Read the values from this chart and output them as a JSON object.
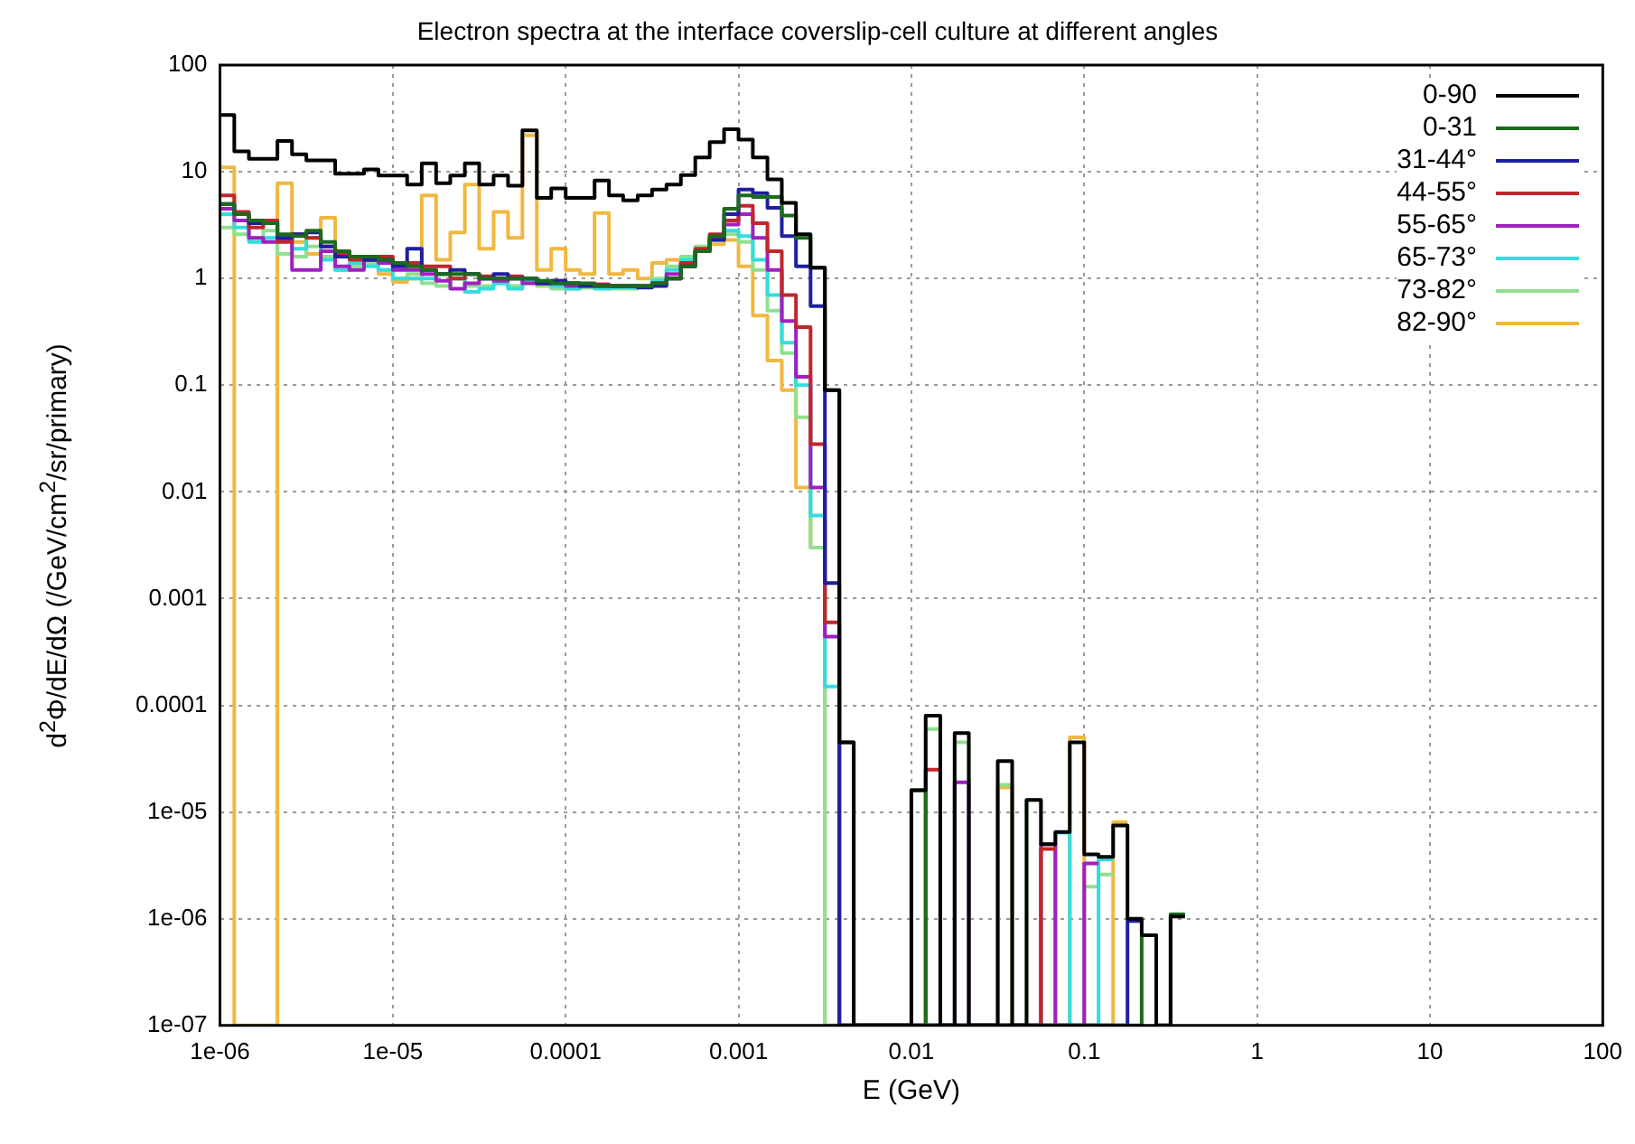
{
  "chart_data": {
    "type": "histogram",
    "title": "Electron spectra at the interface coverslip-cell culture at different angles",
    "xlabel": "E (GeV)",
    "ylabel": "d$^{2}$Φ/dE/dΩ (/GeV/cm$^{2}$/sr/primary)",
    "bins": [
      1e-06,
      1.21e-06,
      1.47e-06,
      1.78e-06,
      2.15e-06,
      2.61e-06,
      3.16e-06,
      3.83e-06,
      4.64e-06,
      5.62e-06,
      6.81e-06,
      8.25e-06,
      1e-05,
      1.21e-05,
      1.47e-05,
      1.78e-05,
      2.15e-05,
      2.61e-05,
      3.16e-05,
      3.83e-05,
      4.64e-05,
      5.62e-05,
      6.81e-05,
      8.25e-05,
      0.0001,
      0.000121,
      0.000147,
      0.000178,
      0.000215,
      0.000261,
      0.000316,
      0.000383,
      0.000464,
      0.000562,
      0.000681,
      0.000825,
      0.001,
      0.00121,
      0.00147,
      0.00178,
      0.00215,
      0.00261,
      0.00316,
      0.00383,
      0.00464,
      0.00562,
      0.00681,
      0.00825,
      0.01,
      0.0121,
      0.0147,
      0.0178,
      0.0215,
      0.0261,
      0.0316,
      0.0383,
      0.0464,
      0.0562,
      0.0681,
      0.0825,
      0.1,
      0.121,
      0.147,
      0.178,
      0.215,
      0.261,
      0.316,
      0.383
    ],
    "series": [
      {
        "name": "0-90",
        "color": "#000000",
        "values": [
          34,
          15.5,
          13.2,
          13.2,
          19.4,
          14.6,
          12.8,
          12.8,
          9.6,
          9.6,
          10.5,
          9.2,
          9.2,
          7.6,
          12,
          7.8,
          9.2,
          12,
          7.6,
          9.2,
          7.4,
          24.5,
          5.7,
          7,
          5.7,
          5.7,
          8.3,
          6,
          5.4,
          6,
          6.8,
          7.6,
          9.3,
          13.6,
          19,
          25,
          20,
          13.6,
          8.5,
          5.1,
          2.6,
          1.26,
          0.09,
          4.5e-05,
          null,
          null,
          null,
          null,
          1.6e-05,
          8e-05,
          null,
          5.5e-05,
          null,
          null,
          3e-05,
          null,
          1.3e-05,
          5e-06,
          6.5e-06,
          4.5e-05,
          4e-06,
          3.8e-06,
          7.5e-06,
          1e-06,
          7e-07,
          null,
          1.05e-06
        ]
      },
      {
        "name": "0-31",
        "color": "#1a6b1a",
        "values": [
          5,
          4,
          3.5,
          3.3,
          2.6,
          2.5,
          2.8,
          2.2,
          1.8,
          1.6,
          1.6,
          1.5,
          1.4,
          1.3,
          1.2,
          1.1,
          1.1,
          1.1,
          1.0,
          1.0,
          1.0,
          1.0,
          0.95,
          0.9,
          0.9,
          0.9,
          0.85,
          0.85,
          0.85,
          0.85,
          0.9,
          1.0,
          1.3,
          1.8,
          2.5,
          4.5,
          6,
          5.8,
          5.8,
          3.9,
          2.4,
          1.26,
          0.09,
          4.5e-05,
          null,
          null,
          null,
          null,
          1.6e-05,
          null,
          null,
          null,
          null,
          null,
          null,
          null,
          null,
          null,
          null,
          null,
          null,
          null,
          null,
          null,
          7e-07,
          null,
          1.1e-06
        ]
      },
      {
        "name": "31-44°",
        "color": "#1f1fa0",
        "bins": [
          1e-06,
          1.21e-06,
          1.47e-06,
          1.78e-06,
          2.15e-06,
          2.61e-06,
          3.16e-06,
          3.83e-06,
          4.64e-06,
          5.62e-06,
          6.81e-06,
          8.25e-06,
          1e-05,
          1.21e-05,
          1.47e-05,
          1.78e-05,
          2.15e-05,
          2.61e-05,
          3.16e-05,
          3.83e-05,
          4.64e-05,
          5.62e-05,
          6.81e-05,
          8.25e-05,
          0.0001,
          0.000121,
          0.000147,
          0.000178,
          0.000215,
          0.000261,
          0.000316,
          0.000383,
          0.000464,
          0.000562,
          0.000681,
          0.000825,
          0.001,
          0.00121,
          0.00147,
          0.00178,
          0.00215,
          0.00261,
          0.00316,
          0.00383,
          0.00464,
          0.00562,
          0.00681,
          0.00825,
          0.01,
          0.0121,
          0.0147,
          0.0178,
          0.0215,
          0.0261,
          0.0316,
          0.0383,
          0.0464,
          0.0562,
          0.0681,
          0.0825,
          0.1,
          0.121,
          0.147,
          0.178,
          0.215
        ],
        "values": [
          5,
          4,
          3.3,
          3.3,
          2.4,
          2.6,
          2.7,
          2,
          1.6,
          1.6,
          1.5,
          1.5,
          1.3,
          1.9,
          1.2,
          1.1,
          1.2,
          1.1,
          1.0,
          1.1,
          1.0,
          1.0,
          0.9,
          0.95,
          0.9,
          0.85,
          0.85,
          0.85,
          0.85,
          0.82,
          0.85,
          1.0,
          1.3,
          1.8,
          2.3,
          4.0,
          6.8,
          6.3,
          4.6,
          2.5,
          1.3,
          0.55,
          0.0014,
          null,
          null,
          null,
          null,
          null,
          null,
          null,
          null,
          null,
          null,
          null,
          null,
          null,
          null,
          null,
          null,
          null,
          null,
          null,
          null,
          9.5e-07
        ]
      },
      {
        "name": "44-55°",
        "color": "#c0262c",
        "bins": [
          1e-06,
          1.21e-06,
          1.47e-06,
          1.78e-06,
          2.15e-06,
          2.61e-06,
          3.16e-06,
          3.83e-06,
          4.64e-06,
          5.62e-06,
          6.81e-06,
          8.25e-06,
          1e-05,
          1.21e-05,
          1.47e-05,
          1.78e-05,
          2.15e-05,
          2.61e-05,
          3.16e-05,
          3.83e-05,
          4.64e-05,
          5.62e-05,
          6.81e-05,
          8.25e-05,
          0.0001,
          0.000121,
          0.000147,
          0.000178,
          0.000215,
          0.000261,
          0.000316,
          0.000383,
          0.000464,
          0.000562,
          0.000681,
          0.000825,
          0.001,
          0.00121,
          0.00147,
          0.00178,
          0.00215,
          0.00261,
          0.00316,
          0.00383,
          0.00464,
          0.00562,
          0.00681,
          0.00825,
          0.01,
          0.0121,
          0.0147,
          0.0178,
          0.0215,
          0.0261,
          0.0316,
          0.0383,
          0.0464,
          0.0562,
          0.0681
        ],
        "values": [
          6,
          4.2,
          3,
          3.5,
          2.2,
          2.6,
          2.4,
          2,
          1.7,
          1.5,
          1.5,
          1.6,
          1.4,
          1.4,
          1.3,
          1.3,
          1.0,
          1.1,
          1.05,
          1.0,
          1.05,
          1.0,
          0.9,
          0.95,
          0.9,
          0.88,
          0.88,
          0.85,
          0.85,
          0.85,
          0.9,
          1.0,
          1.4,
          1.9,
          2.6,
          3.5,
          4.8,
          3.3,
          1.8,
          0.7,
          0.35,
          0.028,
          0.0006,
          null,
          null,
          null,
          null,
          null,
          null,
          2.5e-05,
          null,
          null,
          null,
          null,
          null,
          null,
          null,
          4.5e-06
        ]
      },
      {
        "name": "55-65°",
        "color": "#a020c0",
        "bins": [
          1e-06,
          1.21e-06,
          1.47e-06,
          1.78e-06,
          2.15e-06,
          2.61e-06,
          3.16e-06,
          3.83e-06,
          4.64e-06,
          5.62e-06,
          6.81e-06,
          8.25e-06,
          1e-05,
          1.21e-05,
          1.47e-05,
          1.78e-05,
          2.15e-05,
          2.61e-05,
          3.16e-05,
          3.83e-05,
          4.64e-05,
          5.62e-05,
          6.81e-05,
          8.25e-05,
          0.0001,
          0.000121,
          0.000147,
          0.000178,
          0.000215,
          0.000261,
          0.000316,
          0.000383,
          0.000464,
          0.000562,
          0.000681,
          0.000825,
          0.001,
          0.00121,
          0.00147,
          0.00178,
          0.00215,
          0.00261,
          0.00316,
          0.00383,
          0.00464,
          0.00562,
          0.00681,
          0.00825,
          0.01,
          0.0121,
          0.0147,
          0.0178,
          0.0215,
          0.0261,
          0.0316,
          0.0383,
          0.0464,
          0.0562,
          0.0681,
          0.0825,
          0.1,
          0.121
        ],
        "values": [
          4.5,
          3.5,
          2.4,
          2.2,
          2.3,
          1.2,
          1.2,
          1.8,
          1.3,
          1.2,
          1.5,
          1.4,
          1.2,
          1.2,
          1.1,
          0.95,
          0.8,
          0.9,
          1.0,
          0.95,
          1.0,
          0.9,
          0.9,
          0.9,
          0.85,
          0.88,
          0.88,
          0.85,
          0.85,
          0.85,
          0.9,
          1.1,
          1.4,
          1.8,
          2.4,
          3.2,
          4.0,
          2.4,
          1.2,
          0.4,
          0.12,
          0.011,
          0.00044,
          null,
          null,
          null,
          null,
          null,
          null,
          null,
          null,
          1.9e-05,
          null,
          null,
          null,
          null,
          null,
          5e-06,
          null,
          null,
          3.3e-06
        ]
      },
      {
        "name": "65-73°",
        "color": "#33dddd",
        "bins": [
          1e-06,
          1.21e-06,
          1.47e-06,
          1.78e-06,
          2.15e-06,
          2.61e-06,
          3.16e-06,
          3.83e-06,
          4.64e-06,
          5.62e-06,
          6.81e-06,
          8.25e-06,
          1e-05,
          1.21e-05,
          1.47e-05,
          1.78e-05,
          2.15e-05,
          2.61e-05,
          3.16e-05,
          3.83e-05,
          4.64e-05,
          5.62e-05,
          6.81e-05,
          8.25e-05,
          0.0001,
          0.000121,
          0.000147,
          0.000178,
          0.000215,
          0.000261,
          0.000316,
          0.000383,
          0.000464,
          0.000562,
          0.000681,
          0.000825,
          0.001,
          0.00121,
          0.00147,
          0.00178,
          0.00215,
          0.00261,
          0.00316,
          0.00383,
          0.00464,
          0.00562,
          0.00681,
          0.00825,
          0.01,
          0.0121,
          0.0147,
          0.0178,
          0.0215,
          0.0261,
          0.0316,
          0.0383,
          0.0464,
          0.0562,
          0.0681,
          0.0825,
          0.1,
          0.121,
          0.147
        ],
        "values": [
          4,
          3,
          2.2,
          2.4,
          2.5,
          1.9,
          2.4,
          1.5,
          1.2,
          1.4,
          1.3,
          1.2,
          1.0,
          1.0,
          1.0,
          1.1,
          1.0,
          0.75,
          0.8,
          0.9,
          0.8,
          0.95,
          0.9,
          0.85,
          0.8,
          0.85,
          0.8,
          0.82,
          0.82,
          0.85,
          0.95,
          1.2,
          1.5,
          1.8,
          2.3,
          2.8,
          2.5,
          1.5,
          0.7,
          0.25,
          0.1,
          0.006,
          0.00015,
          null,
          null,
          null,
          null,
          null,
          null,
          null,
          null,
          null,
          null,
          null,
          null,
          null,
          null,
          null,
          6.4e-06,
          null,
          null,
          3.6e-06
        ]
      },
      {
        "name": "73-82°",
        "color": "#90e090",
        "bins": [
          1e-06,
          1.21e-06,
          1.47e-06,
          1.78e-06,
          2.15e-06,
          2.61e-06,
          3.16e-06,
          3.83e-06,
          4.64e-06,
          5.62e-06,
          6.81e-06,
          8.25e-06,
          1e-05,
          1.21e-05,
          1.47e-05,
          1.78e-05,
          2.15e-05,
          2.61e-05,
          3.16e-05,
          3.83e-05,
          4.64e-05,
          5.62e-05,
          6.81e-05,
          8.25e-05,
          0.0001,
          0.000121,
          0.000147,
          0.000178,
          0.000215,
          0.000261,
          0.000316,
          0.000383,
          0.000464,
          0.000562,
          0.000681,
          0.000825,
          0.001,
          0.00121,
          0.00147,
          0.00178,
          0.00215,
          0.00261,
          0.00316,
          0.00383,
          0.00464,
          0.00562,
          0.00681,
          0.00825,
          0.01,
          0.0121,
          0.0147,
          0.0178,
          0.0215,
          0.0261,
          0.0316,
          0.0383,
          0.0464,
          0.0562,
          0.0681,
          0.0825,
          0.1,
          0.121,
          0.147
        ],
        "values": [
          3,
          2.6,
          2.4,
          2.8,
          1.7,
          1.6,
          2.0,
          1.6,
          1.2,
          1.3,
          1.4,
          1.2,
          1.0,
          1.1,
          0.9,
          0.85,
          1.0,
          0.85,
          0.85,
          0.9,
          0.85,
          0.9,
          0.85,
          0.8,
          0.8,
          0.82,
          0.82,
          0.8,
          0.8,
          0.85,
          1.0,
          1.3,
          1.6,
          2.0,
          2.4,
          2.6,
          2.2,
          1.2,
          0.5,
          0.2,
          0.05,
          0.003,
          null,
          null,
          null,
          null,
          null,
          null,
          null,
          6e-05,
          null,
          4.5e-05,
          null,
          null,
          1.8e-05,
          null,
          1.3e-05,
          null,
          null,
          null,
          2e-06,
          2.6e-06
        ]
      },
      {
        "name": "82-90°",
        "color": "#f0b840",
        "bins": [
          1e-06,
          1.21e-06,
          1.47e-06,
          1.78e-06,
          2.15e-06,
          2.61e-06,
          3.16e-06,
          3.83e-06,
          4.64e-06,
          5.62e-06,
          6.81e-06,
          8.25e-06,
          1e-05,
          1.21e-05,
          1.47e-05,
          1.78e-05,
          2.15e-05,
          2.61e-05,
          3.16e-05,
          3.83e-05,
          4.64e-05,
          5.62e-05,
          6.81e-05,
          8.25e-05,
          0.0001,
          0.000121,
          0.000147,
          0.000178,
          0.000215,
          0.000261,
          0.000316,
          0.000383,
          0.000464,
          0.000562,
          0.000681,
          0.000825,
          0.001,
          0.00121,
          0.00147,
          0.00178,
          0.00215,
          0.00261,
          0.00316,
          0.00383,
          0.00464,
          0.00562,
          0.00681,
          0.00825,
          0.01,
          0.0121,
          0.0147,
          0.0178,
          0.0215,
          0.0261,
          0.0316,
          0.0383,
          0.0464,
          0.0562,
          0.0681,
          0.0825,
          0.1,
          0.121,
          0.147,
          0.178
        ],
        "values": [
          11,
          null,
          null,
          null,
          7.8,
          2.2,
          1.7,
          3.7,
          1.8,
          1.5,
          1.4,
          1.1,
          0.93,
          1.0,
          6,
          1.5,
          2.7,
          7.6,
          1.9,
          4.2,
          2.4,
          22,
          1.2,
          1.9,
          1.2,
          1.1,
          4.1,
          1.1,
          1.2,
          1.0,
          1.4,
          1.5,
          1.3,
          1.9,
          2.1,
          2.3,
          1.3,
          0.45,
          0.17,
          0.09,
          0.011,
          0.003,
          null,
          null,
          null,
          null,
          null,
          null,
          null,
          null,
          null,
          null,
          null,
          null,
          1.7e-05,
          null,
          null,
          null,
          null,
          5e-05,
          null,
          null,
          8e-06
        ]
      }
    ],
    "xlim": [
      1e-06,
      100
    ],
    "ylim": [
      1e-07,
      100
    ],
    "xticks": [
      {
        "value": 1e-06,
        "label": "1e-06"
      },
      {
        "value": 1e-05,
        "label": "1e-05"
      },
      0.0001,
      0.001,
      0.01,
      0.1,
      1,
      10,
      100
    ],
    "yticks": [
      {
        "value": 1e-07,
        "label": "1e-07"
      },
      {
        "value": 1e-06,
        "label": "1e-06"
      },
      {
        "value": 1e-05,
        "label": "1e-05"
      },
      0.0001,
      0.001,
      0.01,
      0.1,
      1,
      10,
      100
    ],
    "log": "xy",
    "grid": true,
    "legend": "top right"
  }
}
